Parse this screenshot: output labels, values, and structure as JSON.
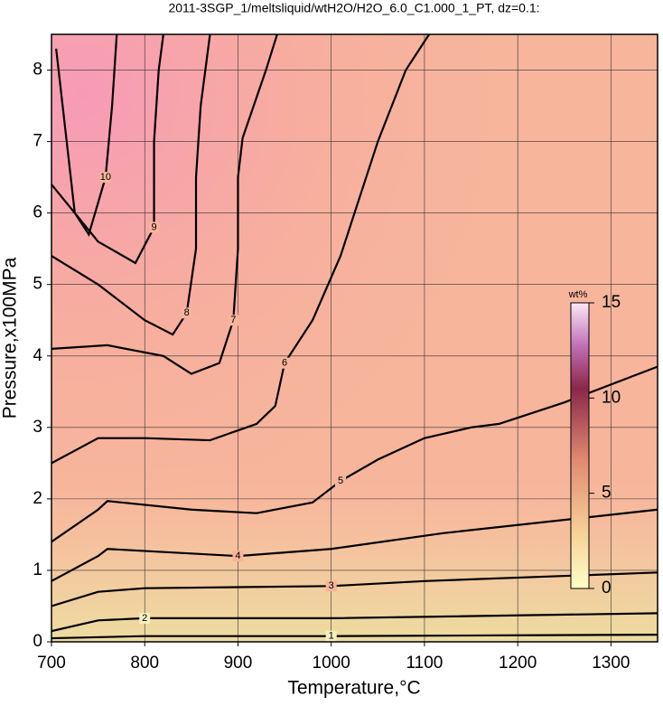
{
  "chart_data": {
    "type": "contour",
    "title": "2011-3SGP_1/meltsliquid/wtH2O/H2O_6.0_C1.000_1_PT, dz=0.1:",
    "x_label": "Temperature,°C",
    "y_label": "Pressure,x100MPa",
    "xlim": [
      700,
      1350
    ],
    "ylim": [
      0,
      8.5
    ],
    "xticks": [
      700,
      800,
      900,
      1000,
      1100,
      1200,
      1300
    ],
    "yticks": [
      0,
      1,
      2,
      3,
      4,
      5,
      6,
      7,
      8
    ],
    "grid": true,
    "colorbar": {
      "label": "wt%",
      "lim": [
        0,
        15
      ],
      "ticks": [
        0,
        5,
        10,
        15
      ]
    },
    "contours": [
      {
        "level": 1,
        "x": [
          700,
          800,
          1000,
          1350
        ],
        "y": [
          0.05,
          0.08,
          0.08,
          0.1
        ]
      },
      {
        "level": 2,
        "x": [
          700,
          750,
          800,
          1000,
          1350
        ],
        "y": [
          0.15,
          0.3,
          0.33,
          0.33,
          0.4
        ]
      },
      {
        "level": 3,
        "x": [
          700,
          750,
          800,
          1000,
          1100,
          1350
        ],
        "y": [
          0.5,
          0.7,
          0.75,
          0.78,
          0.85,
          0.97
        ]
      },
      {
        "level": 4,
        "x": [
          700,
          750,
          760,
          900,
          1000,
          1120,
          1350
        ],
        "y": [
          0.85,
          1.2,
          1.3,
          1.2,
          1.3,
          1.52,
          1.85
        ]
      },
      {
        "level": 5,
        "x": [
          700,
          750,
          760,
          850,
          920,
          980,
          1010,
          1050,
          1100,
          1150,
          1180,
          1250,
          1350
        ],
        "y": [
          1.4,
          1.85,
          1.97,
          1.85,
          1.8,
          1.95,
          2.25,
          2.55,
          2.85,
          3.0,
          3.05,
          3.35,
          3.85
        ]
      },
      {
        "level": 6,
        "x": [
          700,
          750,
          800,
          870,
          920,
          940,
          950,
          980,
          1010,
          1030,
          1050,
          1080,
          1105
        ],
        "y": [
          2.5,
          2.85,
          2.85,
          2.82,
          3.05,
          3.3,
          3.9,
          4.5,
          5.4,
          6.2,
          7.0,
          8.0,
          8.5
        ]
      },
      {
        "level": 7,
        "x": [
          700,
          760,
          820,
          850,
          880,
          895,
          900,
          900,
          905,
          930,
          942
        ],
        "y": [
          4.1,
          4.15,
          4.0,
          3.75,
          3.9,
          4.5,
          5.5,
          6.5,
          7.05,
          8.0,
          8.5
        ]
      },
      {
        "level": 8,
        "x": [
          700,
          750,
          800,
          830,
          845,
          855,
          855,
          860,
          870
        ],
        "y": [
          5.4,
          5.0,
          4.5,
          4.3,
          4.6,
          5.5,
          6.5,
          7.5,
          8.5
        ]
      },
      {
        "level": 9,
        "x": [
          700,
          750,
          790,
          810,
          810,
          815,
          820
        ],
        "y": [
          6.4,
          5.6,
          5.3,
          5.8,
          7.0,
          8.0,
          8.5
        ]
      },
      {
        "level": 10,
        "x": [
          705,
          725,
          740,
          758,
          765,
          770
        ],
        "y": [
          8.3,
          6.0,
          5.7,
          6.5,
          7.5,
          8.5
        ]
      }
    ]
  }
}
